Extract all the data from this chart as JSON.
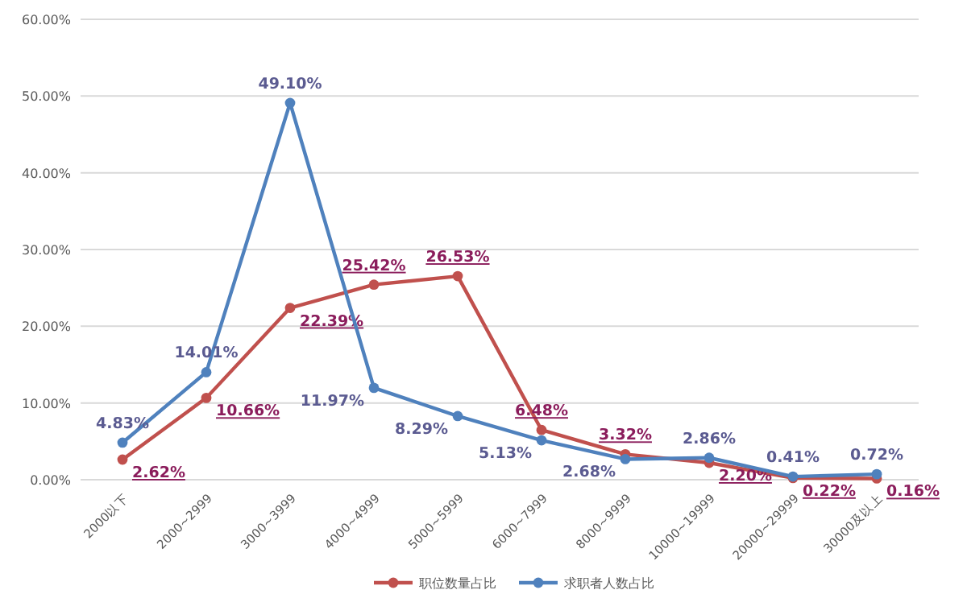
{
  "chart_data": {
    "type": "line",
    "categories": [
      "2000以下",
      "2000~2999",
      "3000~3999",
      "4000~4999",
      "5000~5999",
      "6000~7999",
      "8000~9999",
      "10000~19999",
      "20000~29999",
      "30000及以上"
    ],
    "series": [
      {
        "name": "职位数量占比",
        "color": "#c0504d",
        "values": [
          2.62,
          10.66,
          22.39,
          25.42,
          26.53,
          6.48,
          3.32,
          2.2,
          0.22,
          0.16
        ],
        "value_labels": [
          "2.62%",
          "10.66%",
          "22.39%",
          "25.42%",
          "26.53%",
          "6.48%",
          "3.32%",
          "2.20%",
          "0.22%",
          "0.16%"
        ]
      },
      {
        "name": "求职者人数占比",
        "color": "#4f81bd",
        "values": [
          4.83,
          14.01,
          49.1,
          11.97,
          8.29,
          5.13,
          2.68,
          2.86,
          0.41,
          0.72
        ],
        "value_labels": [
          "4.83%",
          "14.01%",
          "49.10%",
          "11.97%",
          "8.29%",
          "5.13%",
          "2.68%",
          "2.86%",
          "0.41%",
          "0.72%"
        ]
      }
    ],
    "ylim": [
      0,
      60
    ],
    "yticks": [
      {
        "value": 0,
        "label": "0.00%"
      },
      {
        "value": 10,
        "label": "10.00%"
      },
      {
        "value": 20,
        "label": "20.00%"
      },
      {
        "value": 30,
        "label": "30.00%"
      },
      {
        "value": 40,
        "label": "40.00%"
      },
      {
        "value": 50,
        "label": "50.00%"
      },
      {
        "value": 60,
        "label": "60.00%"
      }
    ],
    "grid": "y",
    "legend": "bottom",
    "marker": "circle",
    "line_style": "solid"
  }
}
